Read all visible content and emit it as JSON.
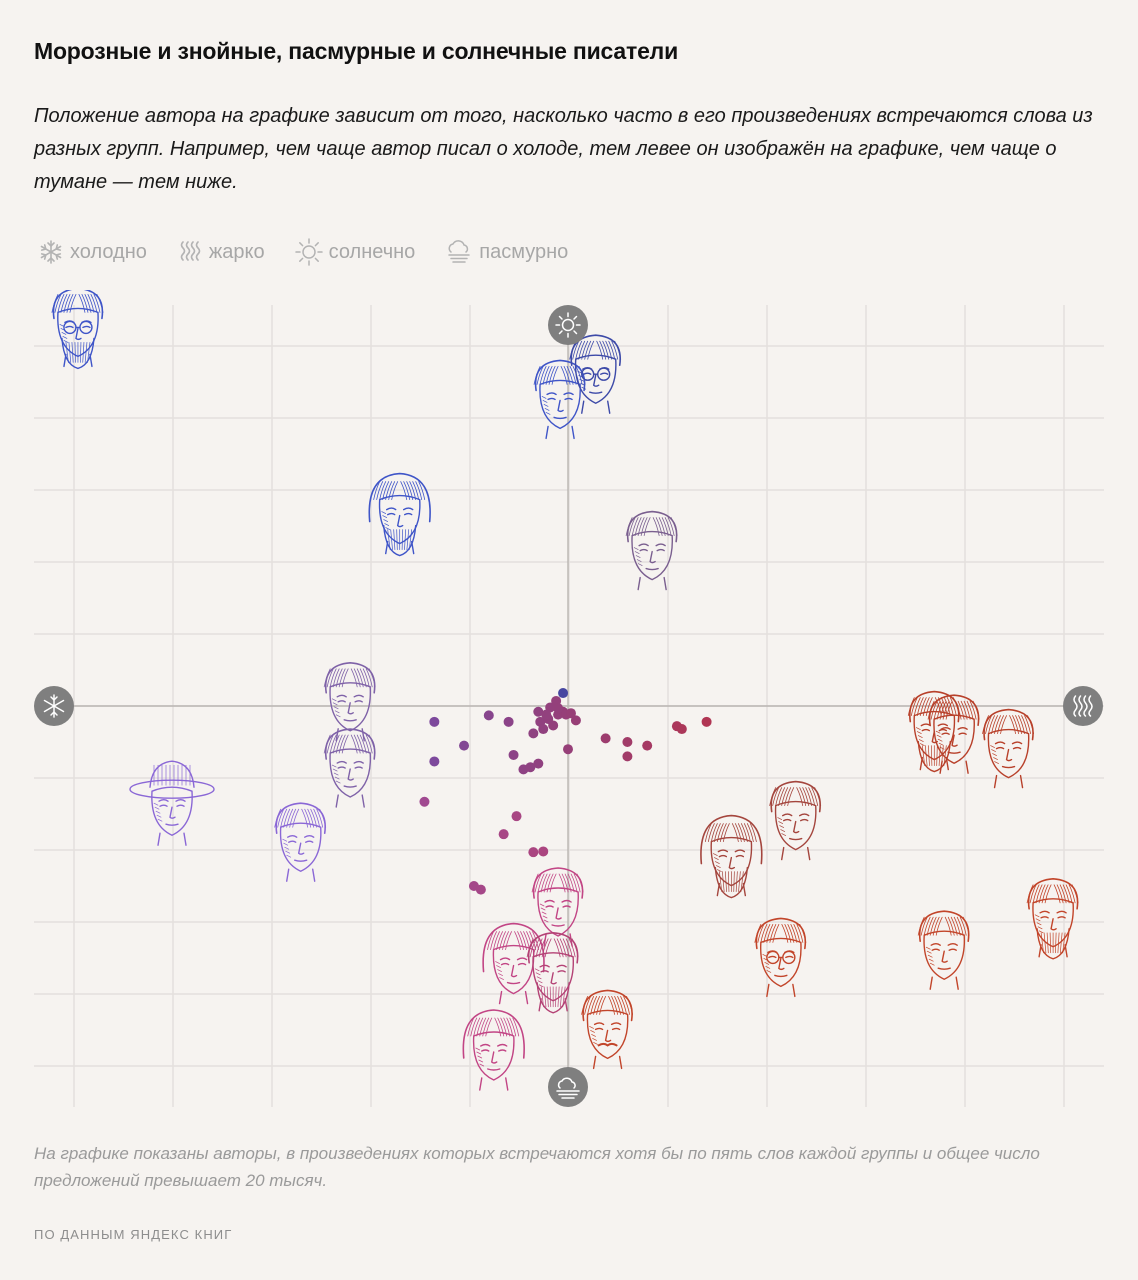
{
  "title": "Морозные и знойные, пасмурные и солнечные писатели",
  "subtitle": "Положение автора на графике зависит от того, насколько часто в его произведениях встречаются слова из разных групп. Например, чем чаще автор писал о холоде, тем левее он изображён на графике, чем чаще о тумане — тем ниже.",
  "legend": [
    {
      "icon": "snowflake-icon",
      "label": "холодно"
    },
    {
      "icon": "heat-waves-icon",
      "label": "жарко"
    },
    {
      "icon": "sun-icon",
      "label": "солнечно"
    },
    {
      "icon": "cloud-fog-icon",
      "label": "пасмурно"
    }
  ],
  "colors": {
    "cold": "#3f55c8",
    "cold_violet": "#8a67d6",
    "center": "#8a3f86",
    "pink": "#c24585",
    "warm": "#c2452a",
    "grid": "#e4e0dd",
    "axis": "#b9b5b2",
    "axis_badge": "#7f7f7f",
    "legend_text": "#a7a7a7"
  },
  "chart_data": {
    "type": "scatter",
    "title": "",
    "xlabel": "",
    "ylabel": "",
    "xlim": [
      -5,
      5
    ],
    "ylim": [
      -5.5,
      5.5
    ],
    "grid": true,
    "axis_ends": {
      "left": "snowflake-icon",
      "right": "heat-waves-icon",
      "top": "sun-icon",
      "bottom": "cloud-fog-icon"
    },
    "dots": [
      [
        -1.35,
        -0.22
      ],
      [
        -1.05,
        -0.55
      ],
      [
        -1.35,
        -0.77
      ],
      [
        -1.45,
        -1.33
      ],
      [
        -0.8,
        -0.13
      ],
      [
        -0.6,
        -0.22
      ],
      [
        -0.35,
        -0.38
      ],
      [
        -0.15,
        -0.27
      ],
      [
        -0.55,
        -0.68
      ],
      [
        -0.45,
        -0.88
      ],
      [
        -0.38,
        -0.85
      ],
      [
        -0.3,
        -0.8
      ],
      [
        -0.28,
        -0.22
      ],
      [
        -0.25,
        -0.32
      ],
      [
        -0.2,
        -0.18
      ],
      [
        -0.18,
        -0.02
      ],
      [
        -0.12,
        0.07
      ],
      [
        -0.1,
        -0.12
      ],
      [
        -0.05,
        -0.08
      ],
      [
        -0.02,
        -0.12
      ],
      [
        0.0,
        -0.6
      ],
      [
        -0.1,
        -0.03
      ],
      [
        -0.3,
        -0.08
      ],
      [
        -0.22,
        -0.12
      ],
      [
        0.03,
        -0.1
      ],
      [
        0.08,
        -0.2
      ],
      [
        -0.05,
        0.18
      ],
      [
        0.38,
        -0.45
      ],
      [
        0.6,
        -0.5
      ],
      [
        0.6,
        -0.7
      ],
      [
        0.8,
        -0.55
      ],
      [
        1.1,
        -0.28
      ],
      [
        1.15,
        -0.32
      ],
      [
        1.4,
        -0.22
      ],
      [
        -0.52,
        -1.53
      ],
      [
        -0.65,
        -1.78
      ],
      [
        -0.35,
        -2.03
      ],
      [
        -0.95,
        -2.5
      ],
      [
        -0.88,
        -2.55
      ],
      [
        -0.25,
        -2.02
      ]
    ],
    "portraits": [
      {
        "x": -4.95,
        "y": 5.3,
        "color": "#3f55c8",
        "style": "glasses-beard"
      },
      {
        "x": -1.7,
        "y": 2.7,
        "color": "#3f55c8",
        "style": "long-hair-beard"
      },
      {
        "x": -0.08,
        "y": 4.3,
        "color": "#3f55c8",
        "style": "grey-hair"
      },
      {
        "x": 0.28,
        "y": 4.65,
        "color": "#3d4aa8",
        "style": "glasses"
      },
      {
        "x": 0.85,
        "y": 2.2,
        "color": "#7a5f8f",
        "style": "plain"
      },
      {
        "x": -2.2,
        "y": 0.1,
        "color": "#7f62a8",
        "style": "plain"
      },
      {
        "x": -2.2,
        "y": -0.82,
        "color": "#7f62a8",
        "style": "plain"
      },
      {
        "x": -4.0,
        "y": -1.35,
        "color": "#8a67d6",
        "style": "hat"
      },
      {
        "x": -2.7,
        "y": -1.85,
        "color": "#8a67d6",
        "style": "plain"
      },
      {
        "x": -0.1,
        "y": -2.75,
        "color": "#c24585",
        "style": "plain"
      },
      {
        "x": -0.55,
        "y": -3.55,
        "color": "#c24585",
        "style": "curly"
      },
      {
        "x": -0.15,
        "y": -3.65,
        "color": "#b44275",
        "style": "beard"
      },
      {
        "x": 0.4,
        "y": -4.45,
        "color": "#c2452a",
        "style": "mustache"
      },
      {
        "x": -0.75,
        "y": -4.75,
        "color": "#c24585",
        "style": "curly"
      },
      {
        "x": 1.65,
        "y": -2.05,
        "color": "#a4453d",
        "style": "wild-beard"
      },
      {
        "x": 2.3,
        "y": -1.55,
        "color": "#a4453d",
        "style": "plain"
      },
      {
        "x": 2.15,
        "y": -3.45,
        "color": "#c2452a",
        "style": "glasses"
      },
      {
        "x": 3.8,
        "y": -3.35,
        "color": "#c2452a",
        "style": "plain"
      },
      {
        "x": 4.9,
        "y": -2.9,
        "color": "#c2452a",
        "style": "beard"
      },
      {
        "x": 3.7,
        "y": -0.3,
        "color": "#b8402a",
        "style": "beard"
      },
      {
        "x": 3.9,
        "y": -0.35,
        "color": "#b8402a",
        "style": "plain"
      },
      {
        "x": 4.45,
        "y": -0.55,
        "color": "#b8402a",
        "style": "plain"
      }
    ]
  },
  "footnote": "На графике показаны авторы, в произведениях которых встречаются хотя бы по пять слов каждой группы и общее число предложений превышает 20 тысяч.",
  "source": "По данным Яндекс Книг"
}
